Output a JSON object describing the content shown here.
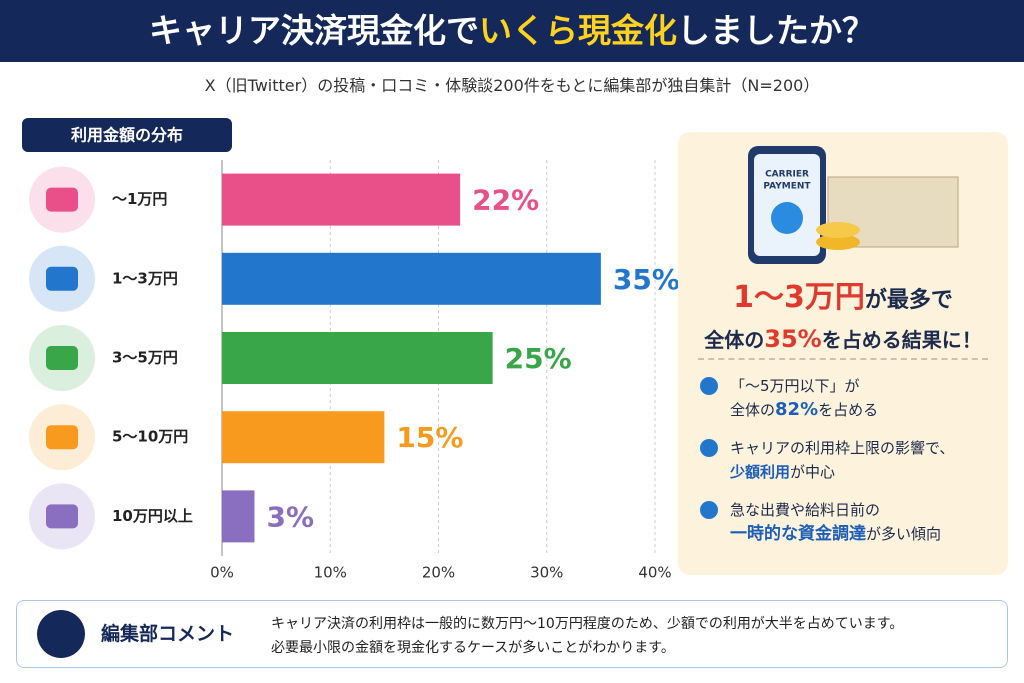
{
  "header": {
    "title_parts": [
      "キャリア決済現金化で",
      "いくら現金化",
      "しましたか？"
    ],
    "subtitle": "X（旧Twitter）の投稿・口コミ・体験談200件をもとに編集部が独自集計（N=200）"
  },
  "chart_data": {
    "type": "bar",
    "orientation": "horizontal",
    "title": "利用金額の分布",
    "categories": [
      "〜1万円",
      "1〜3万円",
      "3〜5万円",
      "5〜10万円",
      "10万円以上"
    ],
    "values": [
      22,
      35,
      25,
      15,
      3
    ],
    "value_labels": [
      "22%",
      "35%",
      "25%",
      "15%",
      "3%"
    ],
    "colors": [
      "#e9508a",
      "#2277cc",
      "#3aa64a",
      "#f79a1e",
      "#8a6fc0"
    ],
    "xlim": [
      0,
      40
    ],
    "xticks": [
      {
        "value": 0,
        "label": "0%"
      },
      {
        "value": 10,
        "label": "10%"
      },
      {
        "value": 20,
        "label": "20%"
      },
      {
        "value": 30,
        "label": "30%"
      },
      {
        "value": 40,
        "label": "40%"
      }
    ],
    "grid": true
  },
  "panel": {
    "card_lines": [
      "CARRIER",
      "PAYMENT"
    ],
    "headline_1": [
      "1〜3万円",
      "が最多で"
    ],
    "headline_2": [
      "全体の",
      "35%",
      "を占める結果に！"
    ],
    "points": [
      [
        [
          "「〜5万円以下」が"
        ],
        [
          "全体の",
          "82%",
          "を占める"
        ]
      ],
      [
        [
          "キャリアの利用枠上限の影響で、"
        ],
        [
          "少額利用",
          "が中心"
        ]
      ],
      [
        [
          "急な出費や給料日前の"
        ],
        [
          "一時的な資金調達",
          "が多い傾向"
        ]
      ]
    ]
  },
  "comment": {
    "title": "編集部コメント",
    "lines": [
      "キャリア決済の利用枠は一般的に数万円〜10万円程度のため、少額での利用が大半を占めています。",
      "必要最小限の金額を現金化するケースが多いことがわかります。"
    ]
  }
}
